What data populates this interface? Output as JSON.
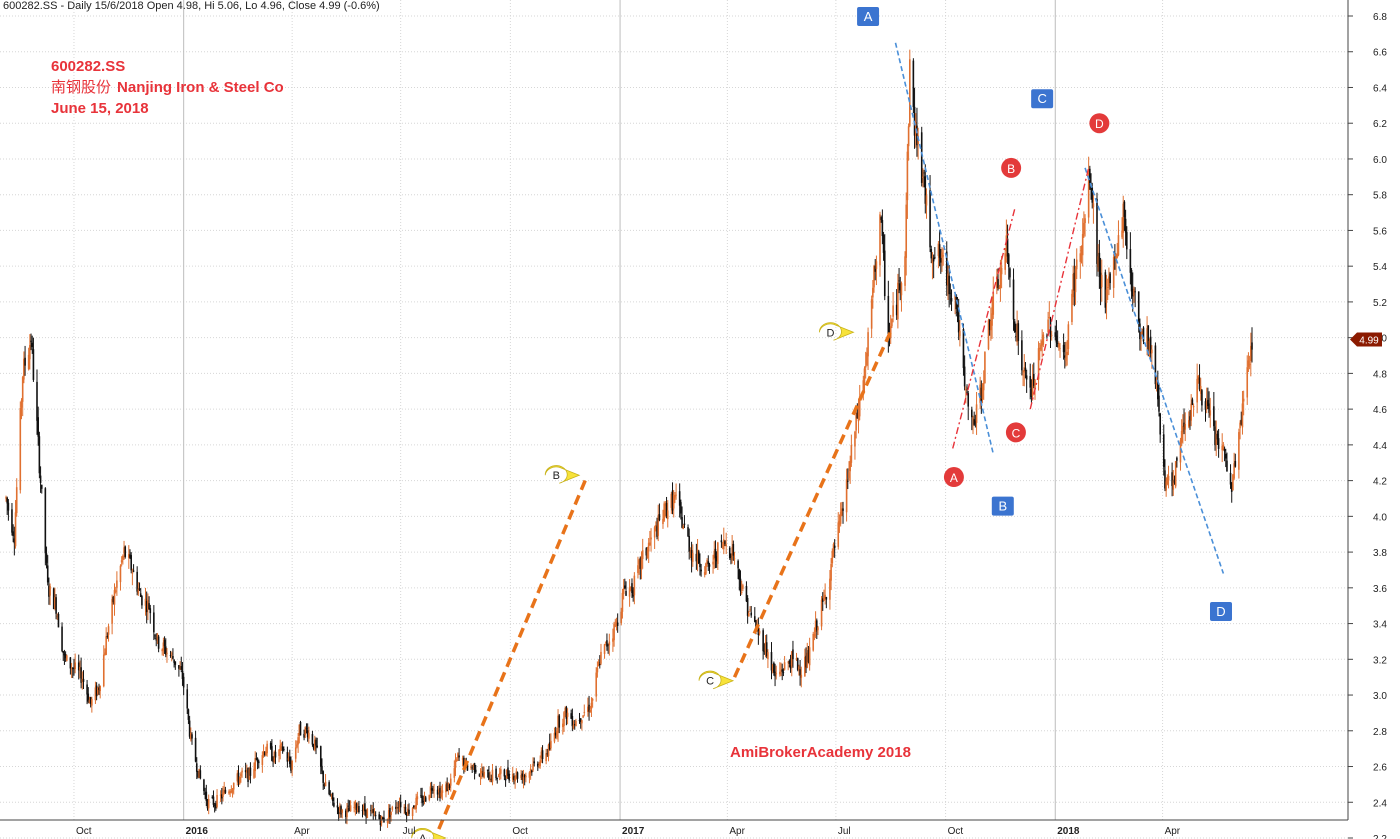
{
  "header": {
    "info": "600282.SS - Daily 15/6/2018 Open 4.98, Hi 5.06, Lo 4.96, Close 4.99 (-0.6%)"
  },
  "title": {
    "ticker": "600282.SS",
    "name_zh": "南钢股份",
    "name_en": "Nanjing Iron & Steel Co",
    "date": "June 15, 2018"
  },
  "watermark": "AmiBrokerAcademy 2018",
  "chart_data": {
    "type": "candlestick",
    "x_range": [
      "2015-08-05",
      "2018-06-15"
    ],
    "ylim": [
      2.2,
      6.8
    ],
    "y_ticks": [
      2.2,
      2.4,
      2.6,
      2.8,
      3.0,
      3.2,
      3.4,
      3.6,
      3.8,
      4.0,
      4.2,
      4.4,
      4.6,
      4.8,
      5.0,
      5.2,
      5.4,
      5.6,
      5.8,
      6.0,
      6.2,
      6.4,
      6.6,
      6.8
    ],
    "x_ticks": [
      {
        "date": "2015-10-01",
        "label": "Oct",
        "bold": false
      },
      {
        "date": "2016-01-01",
        "label": "2016",
        "bold": true
      },
      {
        "date": "2016-04-01",
        "label": "Apr",
        "bold": false
      },
      {
        "date": "2016-07-01",
        "label": "Jul",
        "bold": false
      },
      {
        "date": "2016-10-01",
        "label": "Oct",
        "bold": false
      },
      {
        "date": "2017-01-01",
        "label": "2017",
        "bold": true
      },
      {
        "date": "2017-04-01",
        "label": "Apr",
        "bold": false
      },
      {
        "date": "2017-07-01",
        "label": "Jul",
        "bold": false
      },
      {
        "date": "2017-10-01",
        "label": "Oct",
        "bold": false
      },
      {
        "date": "2018-01-01",
        "label": "2018",
        "bold": true
      },
      {
        "date": "2018-04-01",
        "label": "Apr",
        "bold": false
      }
    ],
    "last_close": {
      "value": 4.99,
      "label": "4.99",
      "color": "#8b1a00"
    },
    "grid": true,
    "price_path": [
      [
        "2015-08-05",
        4.1
      ],
      [
        "2015-08-12",
        3.9
      ],
      [
        "2015-08-19",
        4.8
      ],
      [
        "2015-08-26",
        5.0
      ],
      [
        "2015-09-02",
        4.3
      ],
      [
        "2015-09-09",
        3.6
      ],
      [
        "2015-09-16",
        3.5
      ],
      [
        "2015-09-23",
        3.2
      ],
      [
        "2015-10-08",
        3.1
      ],
      [
        "2015-10-15",
        2.95
      ],
      [
        "2015-10-22",
        3.05
      ],
      [
        "2015-10-29",
        3.35
      ],
      [
        "2015-11-05",
        3.6
      ],
      [
        "2015-11-12",
        3.8
      ],
      [
        "2015-11-19",
        3.7
      ],
      [
        "2015-11-26",
        3.55
      ],
      [
        "2015-12-03",
        3.5
      ],
      [
        "2015-12-10",
        3.3
      ],
      [
        "2015-12-17",
        3.25
      ],
      [
        "2015-12-24",
        3.2
      ],
      [
        "2015-12-31",
        3.1
      ],
      [
        "2016-01-07",
        2.75
      ],
      [
        "2016-01-14",
        2.55
      ],
      [
        "2016-01-21",
        2.4
      ],
      [
        "2016-01-28",
        2.4
      ],
      [
        "2016-02-18",
        2.55
      ],
      [
        "2016-02-25",
        2.55
      ],
      [
        "2016-03-03",
        2.65
      ],
      [
        "2016-03-10",
        2.7
      ],
      [
        "2016-03-17",
        2.65
      ],
      [
        "2016-03-24",
        2.7
      ],
      [
        "2016-03-31",
        2.6
      ],
      [
        "2016-04-07",
        2.8
      ],
      [
        "2016-04-14",
        2.8
      ],
      [
        "2016-04-21",
        2.7
      ],
      [
        "2016-04-28",
        2.5
      ],
      [
        "2016-05-05",
        2.4
      ],
      [
        "2016-05-12",
        2.35
      ],
      [
        "2016-05-19",
        2.35
      ],
      [
        "2016-05-26",
        2.38
      ],
      [
        "2016-06-02",
        2.35
      ],
      [
        "2016-06-09",
        2.32
      ],
      [
        "2016-06-16",
        2.3
      ],
      [
        "2016-06-23",
        2.35
      ],
      [
        "2016-06-30",
        2.4
      ],
      [
        "2016-07-07",
        2.35
      ],
      [
        "2016-07-14",
        2.4
      ],
      [
        "2016-07-21",
        2.42
      ],
      [
        "2016-07-28",
        2.5
      ],
      [
        "2016-08-04",
        2.45
      ],
      [
        "2016-08-11",
        2.5
      ],
      [
        "2016-08-18",
        2.65
      ],
      [
        "2016-08-25",
        2.6
      ],
      [
        "2016-09-01",
        2.6
      ],
      [
        "2016-09-08",
        2.55
      ],
      [
        "2016-09-15",
        2.55
      ],
      [
        "2016-09-22",
        2.55
      ],
      [
        "2016-09-29",
        2.56
      ],
      [
        "2016-10-13",
        2.55
      ],
      [
        "2016-10-20",
        2.6
      ],
      [
        "2016-10-27",
        2.65
      ],
      [
        "2016-11-03",
        2.7
      ],
      [
        "2016-11-10",
        2.85
      ],
      [
        "2016-11-17",
        2.9
      ],
      [
        "2016-11-24",
        2.85
      ],
      [
        "2016-12-01",
        2.9
      ],
      [
        "2016-12-08",
        2.95
      ],
      [
        "2016-12-15",
        3.2
      ],
      [
        "2016-12-22",
        3.3
      ],
      [
        "2016-12-29",
        3.4
      ],
      [
        "2017-01-05",
        3.6
      ],
      [
        "2017-01-12",
        3.6
      ],
      [
        "2017-01-19",
        3.75
      ],
      [
        "2017-01-26",
        3.85
      ],
      [
        "2017-02-09",
        4.05
      ],
      [
        "2017-02-16",
        4.1
      ],
      [
        "2017-02-23",
        3.95
      ],
      [
        "2017-03-02",
        3.8
      ],
      [
        "2017-03-09",
        3.75
      ],
      [
        "2017-03-16",
        3.7
      ],
      [
        "2017-03-23",
        3.8
      ],
      [
        "2017-03-30",
        3.85
      ],
      [
        "2017-04-06",
        3.8
      ],
      [
        "2017-04-13",
        3.6
      ],
      [
        "2017-04-20",
        3.45
      ],
      [
        "2017-04-27",
        3.35
      ],
      [
        "2017-05-04",
        3.25
      ],
      [
        "2017-05-11",
        3.1
      ],
      [
        "2017-05-18",
        3.15
      ],
      [
        "2017-05-25",
        3.2
      ],
      [
        "2017-06-01",
        3.15
      ],
      [
        "2017-06-08",
        3.2
      ],
      [
        "2017-06-15",
        3.4
      ],
      [
        "2017-06-22",
        3.55
      ],
      [
        "2017-06-29",
        3.8
      ],
      [
        "2017-07-06",
        4.0
      ],
      [
        "2017-07-13",
        4.3
      ],
      [
        "2017-07-20",
        4.6
      ],
      [
        "2017-07-27",
        4.9
      ],
      [
        "2017-08-03",
        5.4
      ],
      [
        "2017-08-07",
        5.7
      ],
      [
        "2017-08-14",
        5.0
      ],
      [
        "2017-08-21",
        5.2
      ],
      [
        "2017-08-28",
        5.5
      ],
      [
        "2017-09-01",
        6.5
      ],
      [
        "2017-09-05",
        6.2
      ],
      [
        "2017-09-12",
        5.9
      ],
      [
        "2017-09-19",
        5.5
      ],
      [
        "2017-09-26",
        5.45
      ],
      [
        "2017-10-10",
        5.2
      ],
      [
        "2017-10-17",
        4.7
      ],
      [
        "2017-10-24",
        4.5
      ],
      [
        "2017-10-31",
        4.7
      ],
      [
        "2017-11-07",
        5.1
      ],
      [
        "2017-11-14",
        5.3
      ],
      [
        "2017-11-21",
        5.5
      ],
      [
        "2017-11-28",
        5.1
      ],
      [
        "2017-12-05",
        4.8
      ],
      [
        "2017-12-12",
        4.7
      ],
      [
        "2017-12-19",
        4.9
      ],
      [
        "2017-12-26",
        5.1
      ],
      [
        "2018-01-02",
        5.0
      ],
      [
        "2018-01-09",
        4.85
      ],
      [
        "2018-01-16",
        5.3
      ],
      [
        "2018-01-23",
        5.5
      ],
      [
        "2018-01-30",
        5.9
      ],
      [
        "2018-02-06",
        5.4
      ],
      [
        "2018-02-13",
        5.2
      ],
      [
        "2018-02-27",
        5.7
      ],
      [
        "2018-03-06",
        5.3
      ],
      [
        "2018-03-13",
        5.05
      ],
      [
        "2018-03-20",
        5.0
      ],
      [
        "2018-03-27",
        4.75
      ],
      [
        "2018-04-03",
        4.2
      ],
      [
        "2018-04-10",
        4.15
      ],
      [
        "2018-04-17",
        4.5
      ],
      [
        "2018-04-24",
        4.6
      ],
      [
        "2018-05-01",
        4.75
      ],
      [
        "2018-05-08",
        4.6
      ],
      [
        "2018-05-15",
        4.45
      ],
      [
        "2018-05-22",
        4.35
      ],
      [
        "2018-05-29",
        4.15
      ],
      [
        "2018-06-05",
        4.5
      ],
      [
        "2018-06-12",
        4.85
      ],
      [
        "2018-06-15",
        4.99
      ]
    ],
    "trendlines": [
      {
        "color": "#e8731a",
        "style": "thick-dash",
        "from": [
          "2016-08-02",
          2.25
        ],
        "to": [
          "2016-12-04",
          4.22
        ]
      },
      {
        "color": "#e8731a",
        "style": "thick-dash",
        "from": [
          "2017-04-07",
          3.1
        ],
        "to": [
          "2017-08-17",
          5.05
        ]
      },
      {
        "color": "#4a8fd8",
        "style": "dash",
        "from": [
          "2017-08-20",
          6.65
        ],
        "to": [
          "2017-11-10",
          4.35
        ]
      },
      {
        "color": "#4a8fd8",
        "style": "dash",
        "from": [
          "2018-01-26",
          5.95
        ],
        "to": [
          "2018-05-22",
          3.68
        ]
      },
      {
        "color": "#e8333a",
        "style": "dash-dot",
        "from": [
          "2017-10-07",
          4.38
        ],
        "to": [
          "2017-11-28",
          5.72
        ]
      },
      {
        "color": "#e8333a",
        "style": "dash-dot",
        "from": [
          "2017-12-11",
          4.6
        ],
        "to": [
          "2018-01-29",
          5.95
        ]
      }
    ],
    "annotations": [
      {
        "text": "A",
        "shape": "yellow-pointer",
        "at": [
          "2016-07-22",
          2.2
        ]
      },
      {
        "text": "B",
        "shape": "yellow-pointer",
        "at": [
          "2016-11-11",
          4.23
        ]
      },
      {
        "text": "C",
        "shape": "yellow-pointer",
        "at": [
          "2017-03-20",
          3.08
        ]
      },
      {
        "text": "D",
        "shape": "yellow-pointer",
        "at": [
          "2017-06-29",
          5.03
        ]
      },
      {
        "text": "A",
        "shape": "blue-square",
        "at": [
          "2017-07-28",
          6.8
        ]
      },
      {
        "text": "B",
        "shape": "blue-square",
        "at": [
          "2017-11-18",
          4.06
        ]
      },
      {
        "text": "C",
        "shape": "blue-square",
        "at": [
          "2017-12-21",
          6.34
        ]
      },
      {
        "text": "D",
        "shape": "blue-square",
        "at": [
          "2018-05-20",
          3.47
        ]
      },
      {
        "text": "A",
        "shape": "red-circle",
        "at": [
          "2017-10-08",
          4.22
        ]
      },
      {
        "text": "B",
        "shape": "red-circle",
        "at": [
          "2017-11-25",
          5.95
        ]
      },
      {
        "text": "C",
        "shape": "red-circle",
        "at": [
          "2017-11-29",
          4.47
        ]
      },
      {
        "text": "D",
        "shape": "red-circle",
        "at": [
          "2018-02-07",
          6.2
        ]
      }
    ]
  }
}
